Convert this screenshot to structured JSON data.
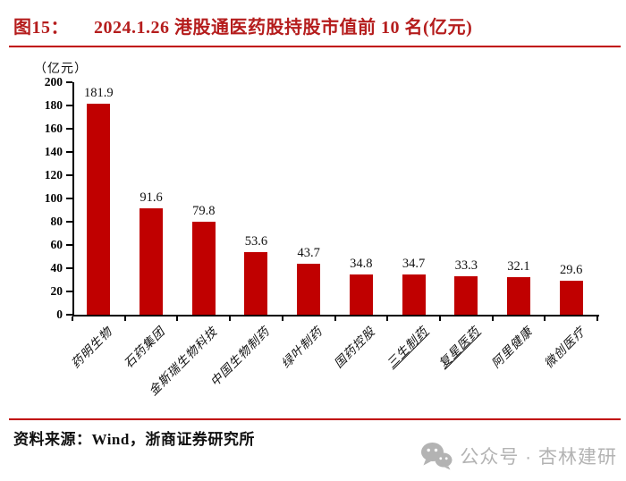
{
  "title": {
    "figure_label": "图15：",
    "text": "2024.1.26 港股通医药股持股市值前 10 名(亿元)"
  },
  "chart_data": {
    "type": "bar",
    "title": "2024.1.26 港股通医药股持股市值前 10 名(亿元)",
    "unit_label": "（亿元）",
    "categories": [
      "药明生物",
      "石药集团",
      "金斯瑞生物科技",
      "中国生物制药",
      "绿叶制药",
      "国药控股",
      "三生制药",
      "复星医药",
      "阿里健康",
      "微创医疗"
    ],
    "values": [
      181.9,
      91.6,
      79.8,
      53.6,
      43.7,
      34.8,
      34.7,
      33.3,
      32.1,
      29.6
    ],
    "value_labels": [
      "181.9",
      "91.6",
      "79.8",
      "53.6",
      "43.7",
      "34.8",
      "34.7",
      "33.3",
      "32.1",
      "29.6"
    ],
    "underlined_categories": [
      "三生制药",
      "复星医药"
    ],
    "ylim": [
      0,
      200
    ],
    "ytick_step": 20,
    "ytick_labels": [
      "0",
      "20",
      "40",
      "60",
      "80",
      "100",
      "120",
      "140",
      "160",
      "180",
      "200"
    ],
    "grid": false,
    "legend_position": "none",
    "bar_color": "#c00000"
  },
  "footer": {
    "source_text": "资料来源：Wind，浙商证券研究所"
  },
  "watermark": {
    "icon": "wechat-icon",
    "text": "公众号 · 杏林建研"
  },
  "colors": {
    "accent_red": "#c00000",
    "title_red": "#b51d1d",
    "text_black": "#111111",
    "watermark_gray": "#b3b3b3"
  }
}
